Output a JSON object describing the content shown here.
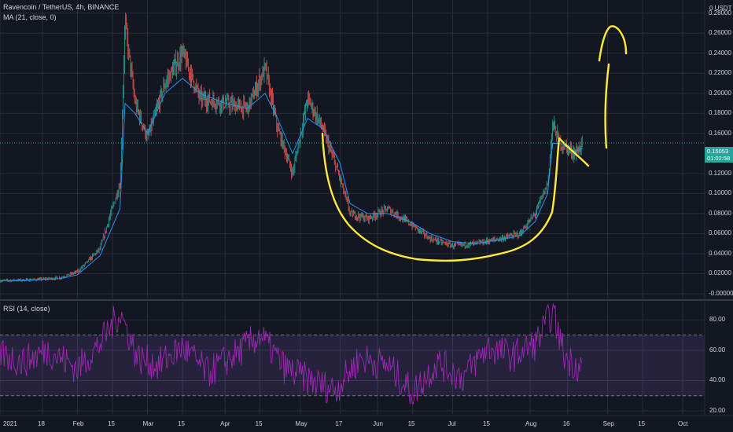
{
  "header": {
    "symbol_line": "Ravencoin / TetherUS, 4h, BINANCE",
    "ma_line": "MA (21, close, 0)",
    "rsi_line": "RSI (14, close)"
  },
  "price_axis": {
    "currency": "0 USDT",
    "ticks": [
      "0.28000",
      "0.26000",
      "0.24000",
      "0.22000",
      "0.20000",
      "0.18000",
      "0.16000",
      "0.12000",
      "0.10000",
      "0.08000",
      "0.06000",
      "0.04000",
      "0.02000",
      "-0.00000"
    ],
    "last_price": "0.15053",
    "countdown": "01:02:58"
  },
  "rsi_axis": {
    "ticks": [
      "80.00",
      "60.00",
      "40.00",
      "20.00"
    ]
  },
  "time_axis": {
    "labels": [
      "2021",
      "18",
      "Feb",
      "15",
      "Mar",
      "15",
      "Apr",
      "15",
      "May",
      "17",
      "Jun",
      "15",
      "Jul",
      "15",
      "Aug",
      "16",
      "Sep",
      "15",
      "Oct"
    ]
  },
  "colors": {
    "background": "#131722",
    "up": "#26a69a",
    "down": "#ef5350",
    "ma": "#2196f3",
    "rsi": "#9c27b0",
    "rsi_band": "#7e57c2",
    "drawing": "#ffeb3b",
    "last_price": "#26a69a"
  },
  "chart_data": [
    {
      "type": "line",
      "title": "Ravencoin / TetherUS, 4h, BINANCE",
      "ylim": [
        0,
        0.29
      ],
      "x": [
        "2021-01-01",
        "2021-01-15",
        "2021-01-25",
        "2021-02-01",
        "2021-02-10",
        "2021-02-18",
        "2021-02-20",
        "2021-02-24",
        "2021-03-01",
        "2021-03-08",
        "2021-03-15",
        "2021-03-22",
        "2021-04-01",
        "2021-04-10",
        "2021-04-17",
        "2021-04-22",
        "2021-04-28",
        "2021-05-04",
        "2021-05-10",
        "2021-05-17",
        "2021-05-21",
        "2021-05-28",
        "2021-06-05",
        "2021-06-14",
        "2021-06-22",
        "2021-07-01",
        "2021-07-10",
        "2021-07-20",
        "2021-07-28",
        "2021-08-03",
        "2021-08-08",
        "2021-08-10",
        "2021-08-13",
        "2021-08-19",
        "2021-08-22"
      ],
      "series": [
        {
          "name": "close",
          "values": [
            0.013,
            0.014,
            0.016,
            0.022,
            0.045,
            0.11,
            0.27,
            0.19,
            0.155,
            0.21,
            0.24,
            0.195,
            0.19,
            0.185,
            0.225,
            0.165,
            0.12,
            0.195,
            0.165,
            0.115,
            0.08,
            0.075,
            0.085,
            0.07,
            0.055,
            0.048,
            0.05,
            0.055,
            0.06,
            0.08,
            0.11,
            0.17,
            0.15,
            0.14,
            0.1505
          ]
        },
        {
          "name": "MA (21, close, 0)",
          "values": [
            0.013,
            0.014,
            0.015,
            0.019,
            0.038,
            0.085,
            0.19,
            0.18,
            0.16,
            0.2,
            0.215,
            0.2,
            0.19,
            0.185,
            0.2,
            0.175,
            0.14,
            0.175,
            0.165,
            0.13,
            0.09,
            0.08,
            0.08,
            0.072,
            0.06,
            0.052,
            0.05,
            0.054,
            0.058,
            0.072,
            0.1,
            0.15,
            0.15,
            0.142,
            0.145
          ]
        }
      ]
    },
    {
      "type": "line",
      "title": "RSI (14, close)",
      "ylim": [
        18,
        92
      ],
      "x": [
        "2021-01-01",
        "2021-01-10",
        "2021-01-20",
        "2021-02-01",
        "2021-02-10",
        "2021-02-18",
        "2021-02-25",
        "2021-03-05",
        "2021-03-15",
        "2021-03-25",
        "2021-04-05",
        "2021-04-15",
        "2021-04-25",
        "2021-05-05",
        "2021-05-15",
        "2021-05-25",
        "2021-06-05",
        "2021-06-15",
        "2021-06-25",
        "2021-07-05",
        "2021-07-15",
        "2021-07-25",
        "2021-08-03",
        "2021-08-10",
        "2021-08-15",
        "2021-08-22"
      ],
      "series": [
        {
          "name": "RSI",
          "values": [
            58,
            52,
            60,
            48,
            64,
            85,
            55,
            50,
            62,
            45,
            57,
            70,
            48,
            40,
            34,
            55,
            50,
            32,
            52,
            42,
            62,
            56,
            64,
            85,
            55,
            48
          ]
        }
      ],
      "bands": [
        30,
        70
      ]
    }
  ]
}
